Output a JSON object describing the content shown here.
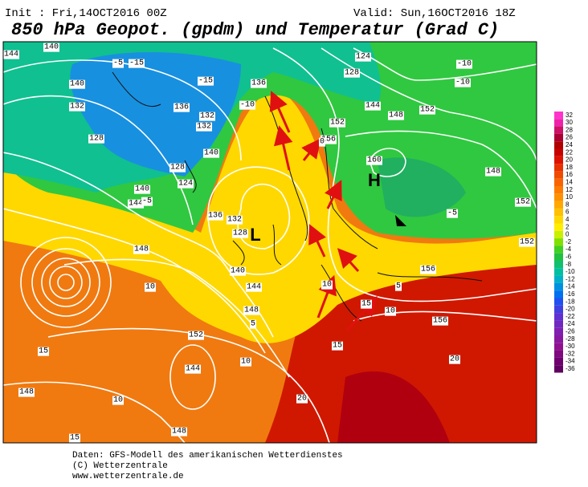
{
  "header": {
    "init": "Init : Fri,14OCT2016 00Z",
    "valid": "Valid: Sun,16OCT2016 18Z",
    "title": "850 hPa Geopot. (gpdm) und Temperatur (Grad C)"
  },
  "map": {
    "pressure_centers": [
      "L",
      "H"
    ],
    "contour_labels": [
      "144",
      "140",
      "140",
      "132",
      "128",
      "136",
      "132",
      "136",
      "132",
      "140",
      "124",
      "128",
      "136",
      "144",
      "140",
      "132",
      "128",
      "140",
      "144",
      "148",
      "148",
      "152",
      "144",
      "148",
      "148",
      "152",
      "156",
      "160",
      "148",
      "152",
      "148",
      "152",
      "152",
      "156",
      "156",
      "124",
      "128",
      "144",
      "-10",
      "-10",
      "-5",
      "-5",
      "10",
      "10",
      "15",
      "20",
      "20",
      "15",
      "15",
      "10",
      "5",
      "-5",
      "-15",
      "-15",
      "-10",
      "0",
      "10",
      "5",
      "10",
      "15"
    ]
  },
  "color_scale": {
    "values": [
      32,
      30,
      28,
      26,
      24,
      22,
      20,
      18,
      16,
      14,
      12,
      10,
      8,
      6,
      4,
      2,
      0,
      -2,
      -4,
      -6,
      -8,
      -10,
      -12,
      -14,
      -16,
      -18,
      -20,
      -22,
      -24,
      -26,
      -28,
      -30,
      -32,
      -34,
      -36
    ],
    "colors": [
      "#ff33cc",
      "#ee22aa",
      "#cc1166",
      "#aa0033",
      "#b00000",
      "#c80000",
      "#dd1100",
      "#e83000",
      "#f04a00",
      "#f86400",
      "#ff7a00",
      "#ff9000",
      "#ffa800",
      "#ffc000",
      "#ffd800",
      "#ffee00",
      "#c8f000",
      "#80e000",
      "#40d020",
      "#20c040",
      "#10c070",
      "#00c0a0",
      "#00b0c8",
      "#0090e0",
      "#0070f0",
      "#2050f0",
      "#4040e0",
      "#6030d0",
      "#7028c0",
      "#8020b0",
      "#8818a0",
      "#901090",
      "#800880",
      "#700070",
      "#600060"
    ]
  },
  "footer": {
    "lines": [
      "Daten: GFS-Modell des amerikanischen Wetterdienstes",
      "(C) Wetterzentrale",
      "www.wetterzentrale.de"
    ]
  }
}
